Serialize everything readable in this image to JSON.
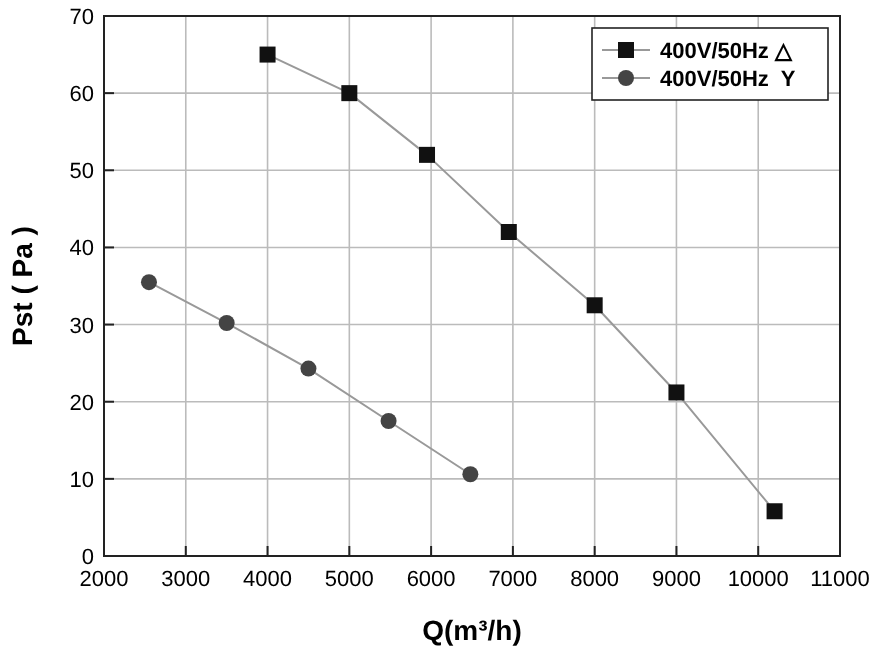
{
  "chart_data": {
    "type": "line",
    "xlabel": "Q(m³/h)",
    "ylabel": "Pst ( Pa )",
    "xlim": [
      2000,
      11000
    ],
    "xticks": [
      2000,
      3000,
      4000,
      5000,
      6000,
      7000,
      8000,
      9000,
      10000,
      11000
    ],
    "ylim": [
      0,
      70
    ],
    "yticks": [
      0,
      10,
      20,
      30,
      40,
      50,
      60,
      70
    ],
    "grid": true,
    "legend": "top right",
    "series": [
      {
        "name": "400V/50Hz △",
        "color": "#111111",
        "marker": "square",
        "x": [
          4000,
          5000,
          5950,
          6950,
          8000,
          9000,
          10200
        ],
        "values": [
          65,
          60,
          52,
          42,
          32.5,
          21.2,
          5.8
        ]
      },
      {
        "name": "400V/50Hz  Y",
        "color": "#444444",
        "marker": "circle",
        "x": [
          2550,
          3500,
          4500,
          5480,
          6480
        ],
        "values": [
          35.5,
          30.2,
          24.3,
          17.5,
          10.6
        ]
      }
    ]
  }
}
